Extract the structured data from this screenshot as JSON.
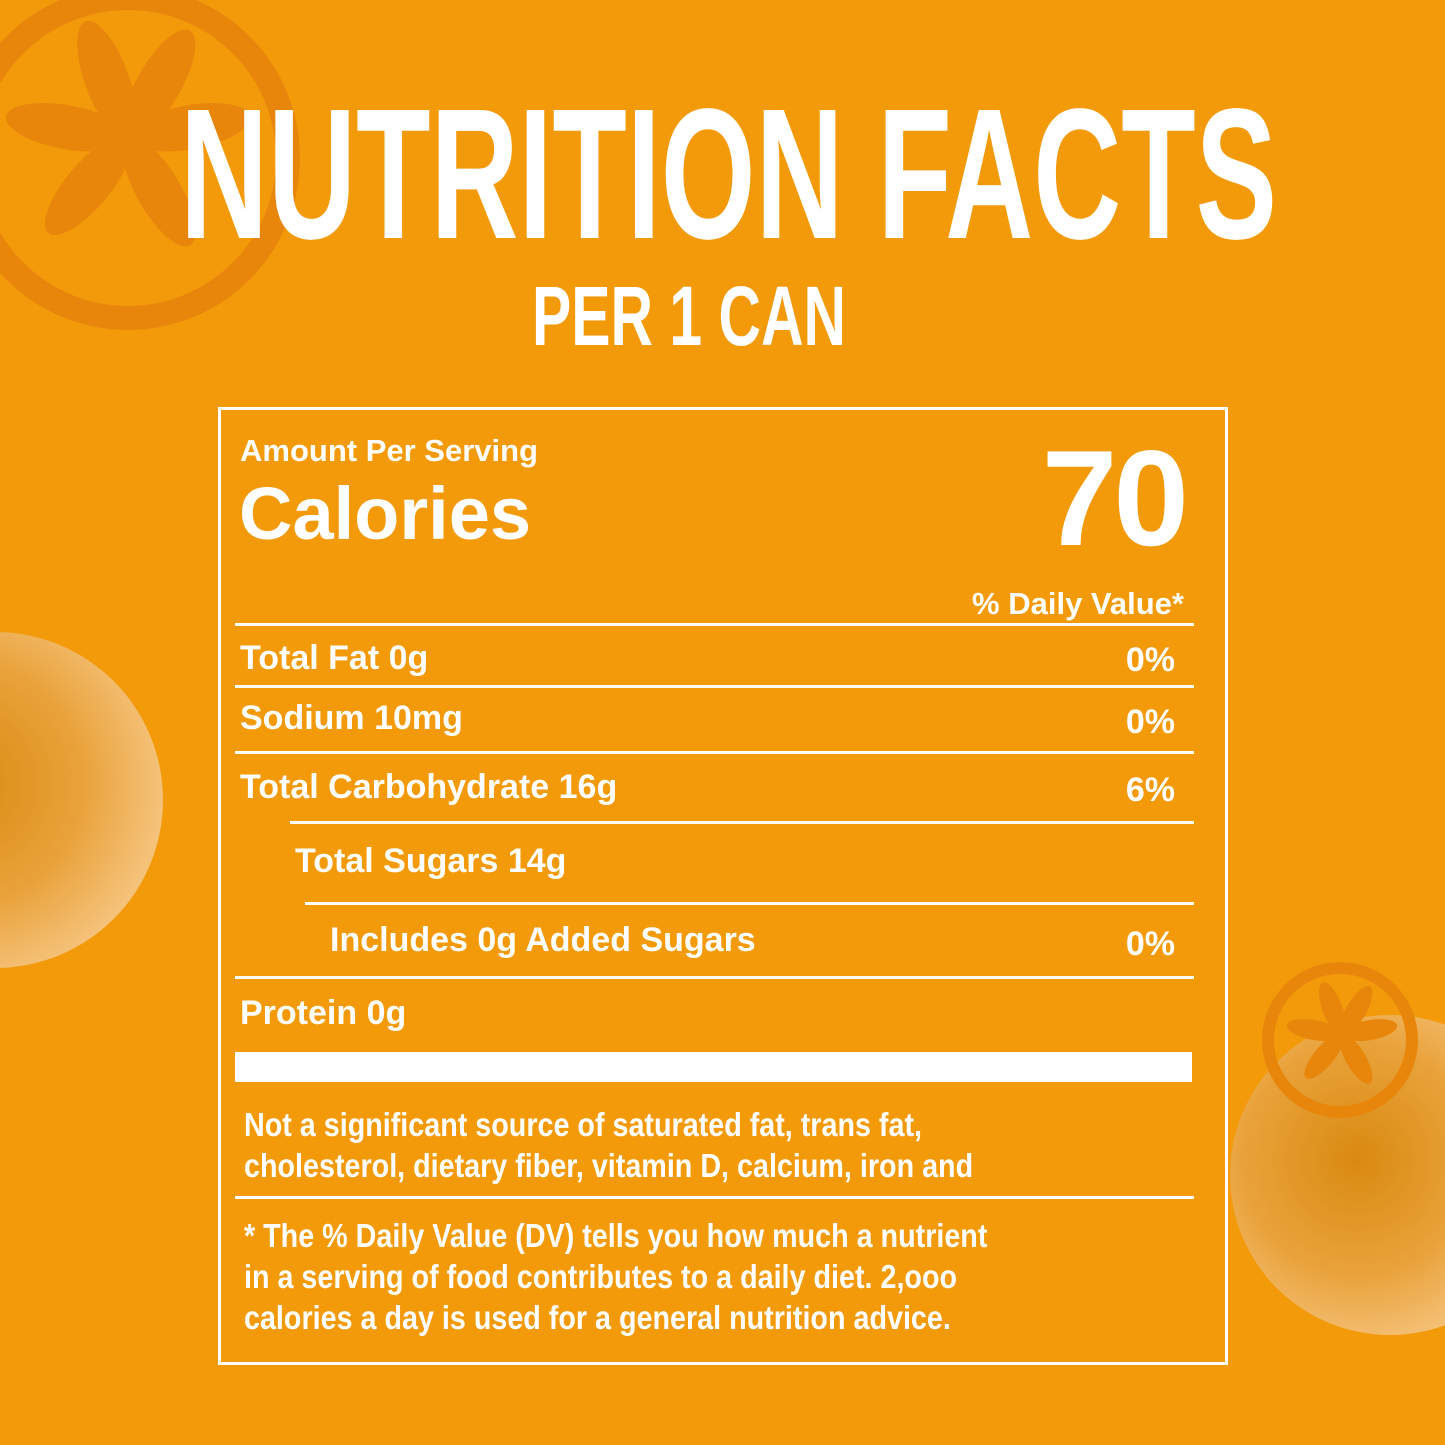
{
  "colors": {
    "background": "#F29A0A",
    "decoration": "#E8860C",
    "text": "#FFFFFF"
  },
  "header": {
    "title": "NUTRITION FACTS",
    "subtitle": "PER 1 CAN"
  },
  "label": {
    "amount_per_serving": "Amount Per Serving",
    "calories_label": "Calories",
    "calories_value": "70",
    "daily_value_header": "% Daily Value*",
    "rows": [
      {
        "name": "Total Fat 0g",
        "dv": "0%"
      },
      {
        "name": "Sodium 10mg",
        "dv": "0%"
      },
      {
        "name": "Total Carbohydrate 16g",
        "dv": "6%"
      },
      {
        "name": "Total Sugars 14g",
        "dv": ""
      },
      {
        "name": "Includes 0g Added Sugars",
        "dv": "0%"
      },
      {
        "name": "Protein 0g",
        "dv": ""
      }
    ],
    "not_significant": [
      "Not a significant source of saturated fat, trans fat,",
      "cholesterol, dietary fiber, vitamin D, calcium, iron and"
    ],
    "footnote": [
      "* The % Daily Value (DV) tells  you how much a nutrient",
      "in a serving of food contributes to a daily diet. 2,ooo",
      "calories a day is used for a general nutrition advice."
    ]
  }
}
